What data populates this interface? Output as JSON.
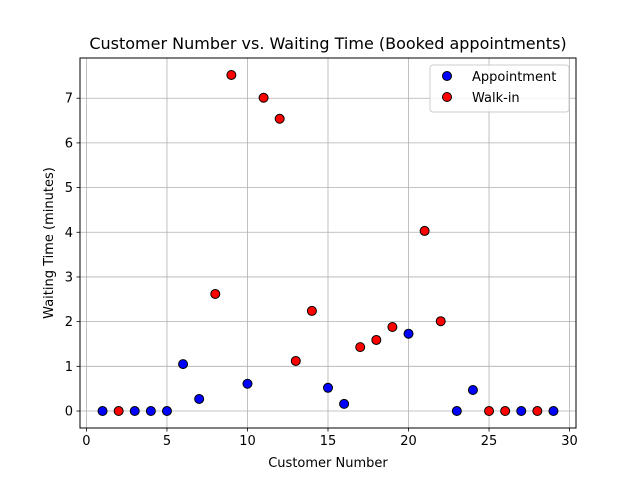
{
  "chart_data": {
    "type": "scatter",
    "title": "Customer Number vs. Waiting Time (Booked appointments)",
    "xlabel": "Customer Number",
    "ylabel": "Waiting Time (minutes)",
    "xlim": [
      -0.4,
      30.4
    ],
    "ylim": [
      -0.38,
      7.9
    ],
    "xticks": [
      0,
      5,
      10,
      15,
      20,
      25,
      30
    ],
    "yticks": [
      0,
      1,
      2,
      3,
      4,
      5,
      6,
      7
    ],
    "grid": true,
    "legend_position": "top-right",
    "series": [
      {
        "name": "Appointment",
        "color": "#0000ff",
        "points": [
          {
            "x": 1,
            "y": 0
          },
          {
            "x": 3,
            "y": 0
          },
          {
            "x": 4,
            "y": 0
          },
          {
            "x": 5,
            "y": 0
          },
          {
            "x": 6,
            "y": 1.05
          },
          {
            "x": 7,
            "y": 0.27
          },
          {
            "x": 10,
            "y": 0.61
          },
          {
            "x": 15,
            "y": 0.52
          },
          {
            "x": 16,
            "y": 0.16
          },
          {
            "x": 20,
            "y": 1.73
          },
          {
            "x": 23,
            "y": 0
          },
          {
            "x": 24,
            "y": 0.47
          },
          {
            "x": 27,
            "y": 0
          },
          {
            "x": 29,
            "y": 0
          }
        ]
      },
      {
        "name": "Walk-in",
        "color": "#ff0000",
        "points": [
          {
            "x": 2,
            "y": 0
          },
          {
            "x": 8,
            "y": 2.62
          },
          {
            "x": 9,
            "y": 7.52
          },
          {
            "x": 11,
            "y": 7.01
          },
          {
            "x": 12,
            "y": 6.54
          },
          {
            "x": 13,
            "y": 1.12
          },
          {
            "x": 14,
            "y": 2.24
          },
          {
            "x": 17,
            "y": 1.43
          },
          {
            "x": 18,
            "y": 1.59
          },
          {
            "x": 19,
            "y": 1.88
          },
          {
            "x": 21,
            "y": 4.03
          },
          {
            "x": 22,
            "y": 2.01
          },
          {
            "x": 25,
            "y": 0
          },
          {
            "x": 26,
            "y": 0
          },
          {
            "x": 28,
            "y": 0
          }
        ]
      }
    ]
  }
}
